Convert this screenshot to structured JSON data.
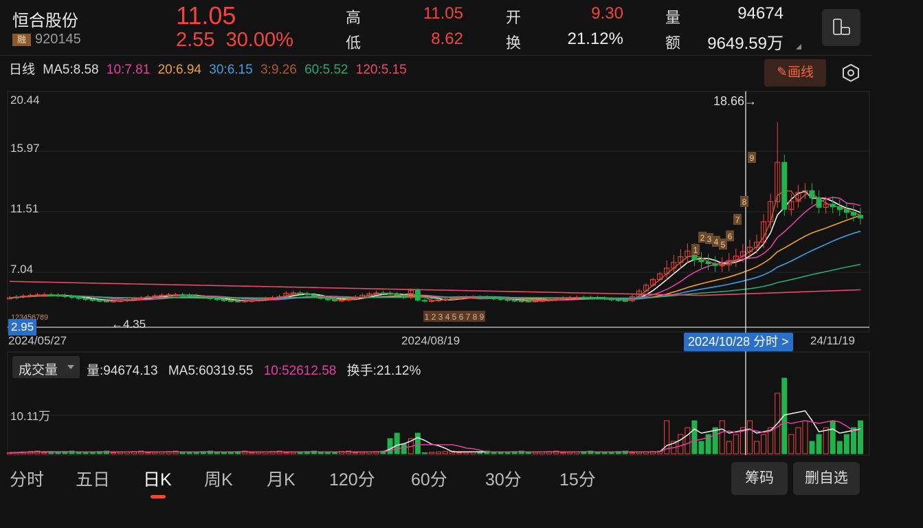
{
  "header": {
    "name": "恒合股份",
    "rong_badge": "融",
    "code": "920145",
    "price": "11.05",
    "change": "2.55",
    "change_pct": "30.00%",
    "high_label": "高",
    "high": "11.05",
    "low_label": "低",
    "low": "8.62",
    "open_label": "开",
    "open": "9.30",
    "turnover_label": "换",
    "turnover": "21.12%",
    "volume_label": "量",
    "volume": "94674",
    "amount_label": "额",
    "amount": "9649.59万"
  },
  "ma_line": {
    "period": "日线",
    "ma5": "MA5:8.58",
    "ma10": "10:7.81",
    "ma20": "20:6.94",
    "ma30": "30:6.15",
    "ma3": "3:9.26",
    "ma60": "60:5.52",
    "ma120": "120:5.15"
  },
  "toolbar": {
    "draw_label": "画线"
  },
  "kline": {
    "y_ticks": [
      "20.44",
      "15.97",
      "11.51",
      "7.04"
    ],
    "x_ticks": [
      "2024/05/27",
      "2024/08/19",
      "24/11/19"
    ],
    "cursor_date": "2024/10/28 分时 >",
    "max_marker": "18.66→",
    "min_marker": "←4.35",
    "price_tag": "2.95",
    "seq_labels": [
      "1",
      "2",
      "3",
      "4",
      "5",
      "6",
      "7",
      "8",
      "9"
    ],
    "colors": {
      "up": "#f4443c",
      "down": "#22b14c"
    }
  },
  "volume": {
    "selector": "成交量",
    "vol": "量:94674.13",
    "ma5": "MA5:60319.55",
    "ma10": "10:52612.58",
    "turnover": "换手:21.12%",
    "y_tick": "10.11万"
  },
  "tabs": [
    "分时",
    "五日",
    "日K",
    "周K",
    "月K",
    "120分",
    "60分",
    "30分",
    "15分"
  ],
  "buttons": {
    "chips": "筹码",
    "remove": "删自选"
  }
}
